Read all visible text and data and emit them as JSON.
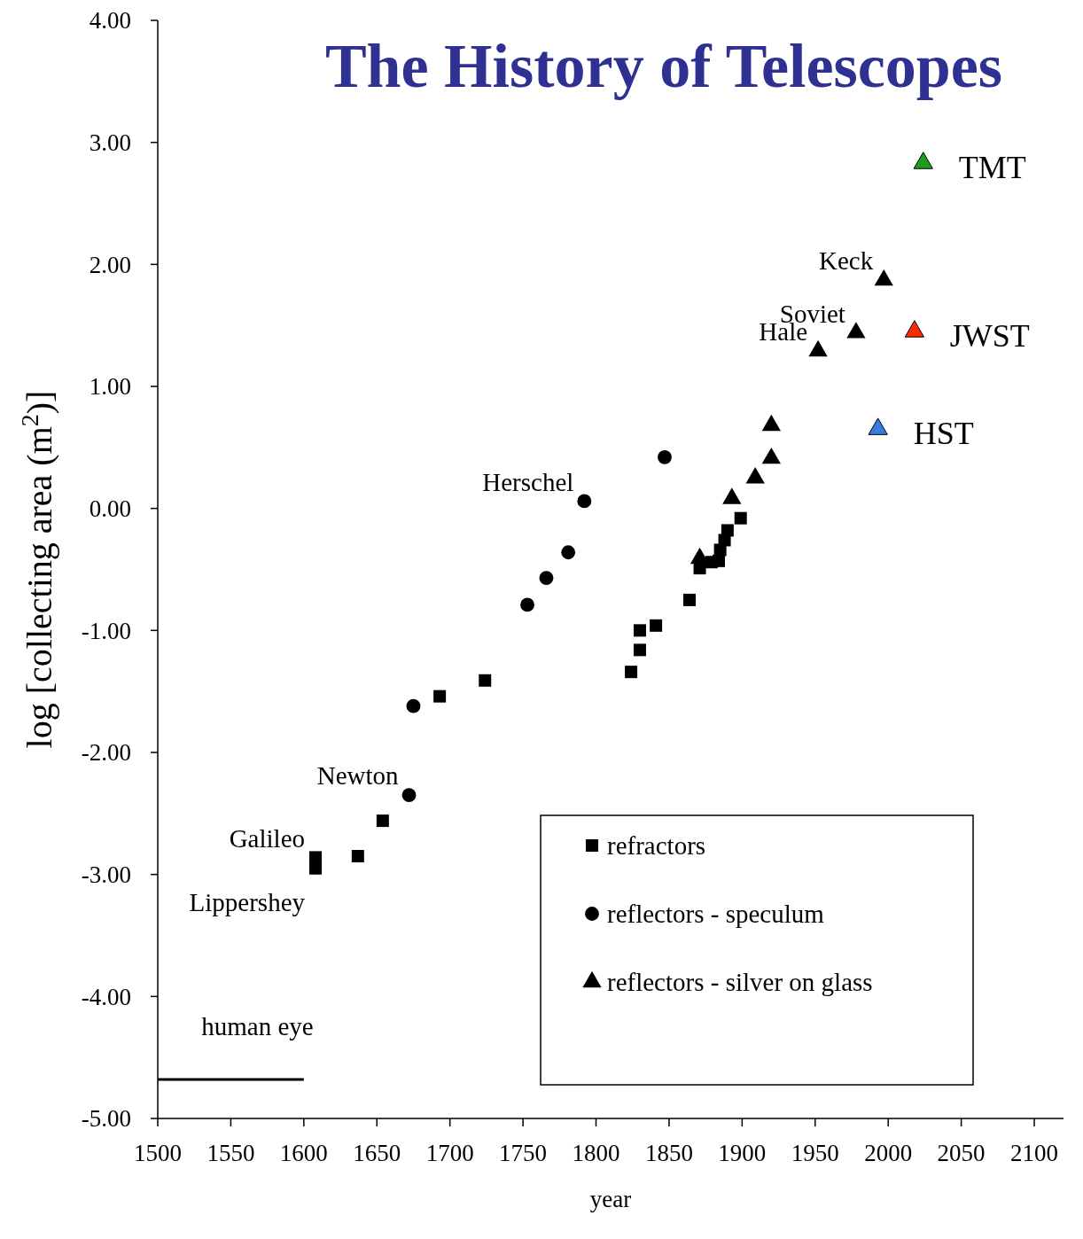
{
  "chart_data": {
    "type": "scatter",
    "title": "The History of Telescopes",
    "xlabel": "year",
    "ylabel": "log [collecting area (m$^{2}$)]",
    "xlim": [
      1500,
      2120
    ],
    "xticks": [
      1500,
      1550,
      1600,
      1650,
      1700,
      1750,
      1800,
      1850,
      1900,
      1950,
      2000,
      2050,
      2100
    ],
    "ylim": [
      -5,
      4
    ],
    "yticks": [
      {
        "value": -5,
        "label": "-5.00"
      },
      {
        "value": -4,
        "label": "-4.00"
      },
      {
        "value": -3,
        "label": "-3.00"
      },
      {
        "value": -2,
        "label": "-2.00"
      },
      {
        "value": -1,
        "label": "-1.00"
      },
      {
        "value": 0,
        "label": "0.00"
      },
      {
        "value": 1,
        "label": "1.00"
      },
      {
        "value": 2,
        "label": "2.00"
      },
      {
        "value": 3,
        "label": "3.00"
      },
      {
        "value": 4,
        "label": "4.00"
      }
    ],
    "grid": false,
    "legend": "bottom right",
    "series": [
      {
        "name": "refractors",
        "color": "#000000",
        "marker": "square",
        "x": [
          1608,
          1608,
          1637,
          1654,
          1693,
          1724,
          1824,
          1830,
          1830,
          1841,
          1864,
          1871,
          1879,
          1884,
          1885,
          1888,
          1890,
          1899
        ],
        "values": [
          -2.86,
          -2.95,
          -2.85,
          -2.56,
          -1.54,
          -1.41,
          -1.34,
          -1.16,
          -1.0,
          -0.96,
          -0.75,
          -0.49,
          -0.44,
          -0.43,
          -0.34,
          -0.26,
          -0.18,
          -0.08
        ]
      },
      {
        "name": "reflectors - speculum",
        "color": "#000000",
        "marker": "circle",
        "x": [
          1672,
          1675,
          1753,
          1766,
          1781,
          1792,
          1847
        ],
        "values": [
          -2.35,
          -1.62,
          -0.79,
          -0.57,
          -0.36,
          0.06,
          0.42
        ]
      },
      {
        "name": "reflectors - silver on glass",
        "color": "#000000",
        "marker": "triangle",
        "x": [
          1871,
          1893,
          1909,
          1920,
          1920,
          1952,
          1978,
          1997
        ],
        "values": [
          -0.41,
          0.08,
          0.25,
          0.41,
          0.68,
          1.29,
          1.44,
          1.87
        ]
      },
      {
        "color": "#1a9e1a",
        "marker": "triangle",
        "x": [
          2024
        ],
        "values": [
          2.83
        ]
      },
      {
        "color": "#ff2a00",
        "marker": "triangle",
        "x": [
          2018
        ],
        "values": [
          1.45
        ]
      },
      {
        "color": "#3a7be0",
        "marker": "triangle",
        "x": [
          1993
        ],
        "values": [
          0.65
        ]
      },
      {
        "type": "line",
        "color": "#000000",
        "marker": "none",
        "x": [
          1500,
          1600
        ],
        "values": [
          -4.68,
          -4.68
        ]
      }
    ],
    "annotations": [
      {
        "text": "Lippershey",
        "x": 1608,
        "y": -2.95
      },
      {
        "text": "Galileo",
        "x": 1608,
        "y": -2.86
      },
      {
        "text": "Newton",
        "x": 1672,
        "y": -2.35
      },
      {
        "text": "Herschel",
        "x": 1792,
        "y": 0.06
      },
      {
        "text": "Hale",
        "x": 1952,
        "y": 1.29
      },
      {
        "text": "Soviet",
        "x": 1978,
        "y": 1.44
      },
      {
        "text": "Keck",
        "x": 1997,
        "y": 1.87
      },
      {
        "text": "TMT",
        "x": 2024,
        "y": 2.83
      },
      {
        "text": "JWST",
        "x": 2018,
        "y": 1.45
      },
      {
        "text": "HST",
        "x": 1993,
        "y": 0.65
      },
      "human eye"
    ]
  }
}
